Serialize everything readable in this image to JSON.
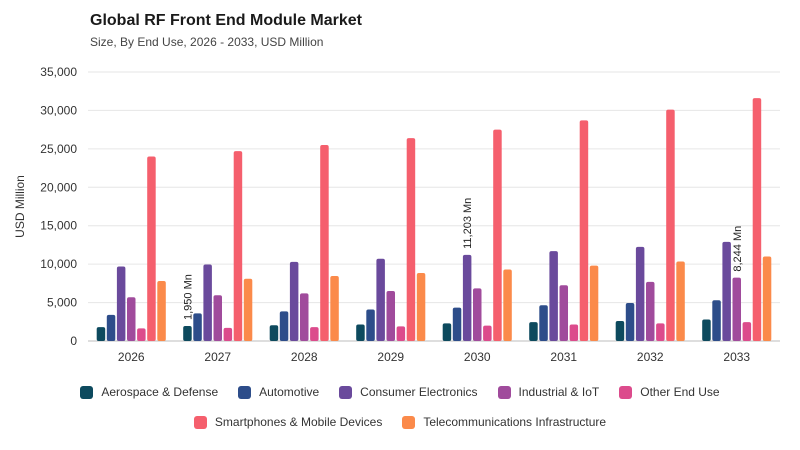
{
  "chart_data": {
    "type": "bar",
    "title": "Global RF Front End Module Market",
    "subtitle": "Size, By End Use, 2026 - 2033, USD Million",
    "ylabel": "USD Million",
    "xlabel": "",
    "ylim": [
      0,
      35000
    ],
    "yticks": [
      "0",
      "5,000",
      "10,000",
      "15,000",
      "20,000",
      "25,000",
      "30,000",
      "35,000"
    ],
    "categories": [
      "2026",
      "2027",
      "2028",
      "2029",
      "2030",
      "2031",
      "2032",
      "2033"
    ],
    "series": [
      {
        "name": "Aerospace & Defense",
        "color": "#0d4a5e",
        "values": [
          1800,
          1950,
          2050,
          2150,
          2300,
          2450,
          2600,
          2800
        ]
      },
      {
        "name": "Automotive",
        "color": "#2d4d8a",
        "values": [
          3400,
          3600,
          3850,
          4100,
          4350,
          4650,
          4950,
          5300
        ]
      },
      {
        "name": "Consumer Electronics",
        "color": "#6a4a9c",
        "values": [
          9700,
          9950,
          10300,
          10700,
          11203,
          11700,
          12250,
          12900
        ]
      },
      {
        "name": "Industrial & IoT",
        "color": "#a04b9c",
        "values": [
          5700,
          5950,
          6200,
          6500,
          6850,
          7250,
          7700,
          8244
        ]
      },
      {
        "name": "Other End Use",
        "color": "#dc4b8c",
        "values": [
          1650,
          1700,
          1800,
          1900,
          2000,
          2150,
          2300,
          2450
        ]
      },
      {
        "name": "Smartphones & Mobile Devices",
        "color": "#f55f6d",
        "values": [
          24000,
          24700,
          25500,
          26400,
          27500,
          28700,
          30100,
          31600
        ]
      },
      {
        "name": "Telecommunications Infrastructure",
        "color": "#fb8a4a",
        "values": [
          7800,
          8100,
          8450,
          8850,
          9300,
          9800,
          10350,
          11000
        ]
      }
    ],
    "annotations": [
      {
        "category": "2027",
        "series": "Aerospace & Defense",
        "text": "1,950 Mn"
      },
      {
        "category": "2030",
        "series": "Consumer Electronics",
        "text": "11,203 Mn"
      },
      {
        "category": "2033",
        "series": "Industrial & IoT",
        "text": "8,244 Mn"
      }
    ],
    "grid": true,
    "legend_position": "bottom"
  }
}
